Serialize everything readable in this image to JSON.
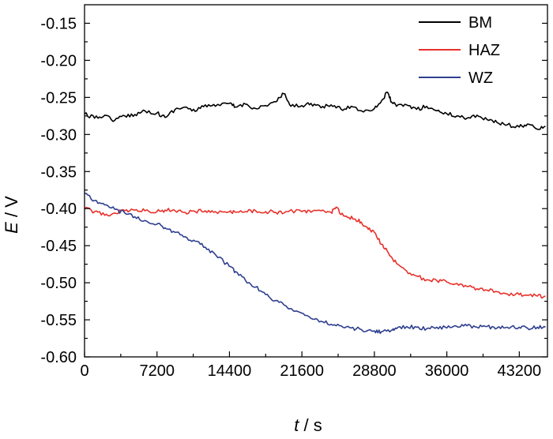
{
  "chart_data": {
    "type": "line",
    "title": "",
    "xlabel": {
      "var": "t",
      "unit": "s",
      "sep": " / "
    },
    "ylabel": {
      "var": "E",
      "unit": "V",
      "sep": " / "
    },
    "xlim": [
      0,
      46000
    ],
    "ylim": [
      -0.6,
      -0.125
    ],
    "xticks": [
      0,
      7200,
      14400,
      21600,
      28800,
      36000,
      43200
    ],
    "xtick_labels": [
      "0",
      "7200",
      "14400",
      "21600",
      "28800",
      "36000",
      "43200"
    ],
    "yticks": [
      -0.15,
      -0.2,
      -0.25,
      -0.3,
      -0.35,
      -0.4,
      -0.45,
      -0.5,
      -0.55,
      -0.6
    ],
    "ytick_labels": [
      "-0.15",
      "-0.20",
      "-0.25",
      "-0.30",
      "-0.35",
      "-0.40",
      "-0.45",
      "-0.50",
      "-0.55",
      "-0.60"
    ],
    "grid": false,
    "legend_position": "top-right",
    "series": [
      {
        "name": "BM",
        "color": "#000000",
        "x": [
          0,
          1000,
          2000,
          3000,
          4000,
          5000,
          6000,
          7200,
          8000,
          9000,
          10000,
          11000,
          12000,
          13000,
          14400,
          15000,
          16000,
          17000,
          18000,
          19000,
          19800,
          20500,
          21600,
          22500,
          23500,
          24500,
          25500,
          26500,
          27500,
          28800,
          29500,
          30100,
          30500,
          31000,
          32000,
          33000,
          34000,
          35000,
          36000,
          37000,
          38000,
          39000,
          40000,
          41000,
          42000,
          43200,
          44000,
          45000,
          45800
        ],
        "y": [
          -0.272,
          -0.278,
          -0.274,
          -0.281,
          -0.275,
          -0.273,
          -0.268,
          -0.271,
          -0.277,
          -0.266,
          -0.263,
          -0.269,
          -0.26,
          -0.262,
          -0.258,
          -0.263,
          -0.259,
          -0.265,
          -0.261,
          -0.256,
          -0.245,
          -0.262,
          -0.261,
          -0.258,
          -0.264,
          -0.26,
          -0.266,
          -0.262,
          -0.268,
          -0.265,
          -0.255,
          -0.243,
          -0.256,
          -0.262,
          -0.26,
          -0.266,
          -0.262,
          -0.268,
          -0.272,
          -0.275,
          -0.278,
          -0.274,
          -0.28,
          -0.284,
          -0.287,
          -0.29,
          -0.286,
          -0.293,
          -0.289
        ]
      },
      {
        "name": "HAZ",
        "color": "#e8312b",
        "x": [
          0,
          1000,
          2000,
          3000,
          4000,
          5000,
          6000,
          7200,
          8000,
          9000,
          10000,
          11000,
          12000,
          13000,
          14400,
          15000,
          16000,
          17000,
          18000,
          19000,
          20000,
          21600,
          22500,
          23500,
          24500,
          25000,
          25500,
          26000,
          26800,
          27500,
          28200,
          28800,
          29500,
          30200,
          31000,
          32000,
          33000,
          34000,
          35000,
          36000,
          37000,
          38000,
          39000,
          40000,
          41000,
          42000,
          43200,
          44000,
          45000,
          45800
        ],
        "y": [
          -0.4,
          -0.404,
          -0.409,
          -0.406,
          -0.403,
          -0.402,
          -0.403,
          -0.404,
          -0.402,
          -0.403,
          -0.405,
          -0.404,
          -0.403,
          -0.404,
          -0.404,
          -0.405,
          -0.404,
          -0.403,
          -0.404,
          -0.405,
          -0.404,
          -0.404,
          -0.405,
          -0.403,
          -0.405,
          -0.398,
          -0.408,
          -0.41,
          -0.414,
          -0.418,
          -0.428,
          -0.432,
          -0.448,
          -0.46,
          -0.474,
          -0.484,
          -0.491,
          -0.496,
          -0.497,
          -0.499,
          -0.501,
          -0.505,
          -0.508,
          -0.51,
          -0.512,
          -0.515,
          -0.516,
          -0.517,
          -0.518,
          -0.518
        ]
      },
      {
        "name": "WZ",
        "color": "#2e3f8f",
        "x": [
          0,
          1000,
          2000,
          3000,
          4000,
          5000,
          6000,
          7200,
          8000,
          9000,
          10000,
          11000,
          12000,
          13000,
          14400,
          15000,
          16000,
          17000,
          18000,
          19000,
          20000,
          21600,
          22500,
          23500,
          24500,
          25500,
          26500,
          27500,
          28800,
          29500,
          30500,
          31000,
          32000,
          33000,
          34000,
          35000,
          36000,
          37000,
          38000,
          39000,
          40000,
          41000,
          42000,
          43200,
          44000,
          45000,
          45800
        ],
        "y": [
          -0.38,
          -0.389,
          -0.395,
          -0.401,
          -0.406,
          -0.411,
          -0.416,
          -0.421,
          -0.426,
          -0.432,
          -0.438,
          -0.444,
          -0.452,
          -0.462,
          -0.478,
          -0.485,
          -0.497,
          -0.506,
          -0.516,
          -0.524,
          -0.531,
          -0.541,
          -0.548,
          -0.552,
          -0.556,
          -0.558,
          -0.561,
          -0.563,
          -0.565,
          -0.566,
          -0.564,
          -0.562,
          -0.559,
          -0.56,
          -0.562,
          -0.56,
          -0.561,
          -0.559,
          -0.558,
          -0.56,
          -0.559,
          -0.561,
          -0.56,
          -0.56,
          -0.561,
          -0.56,
          -0.56
        ]
      }
    ]
  }
}
